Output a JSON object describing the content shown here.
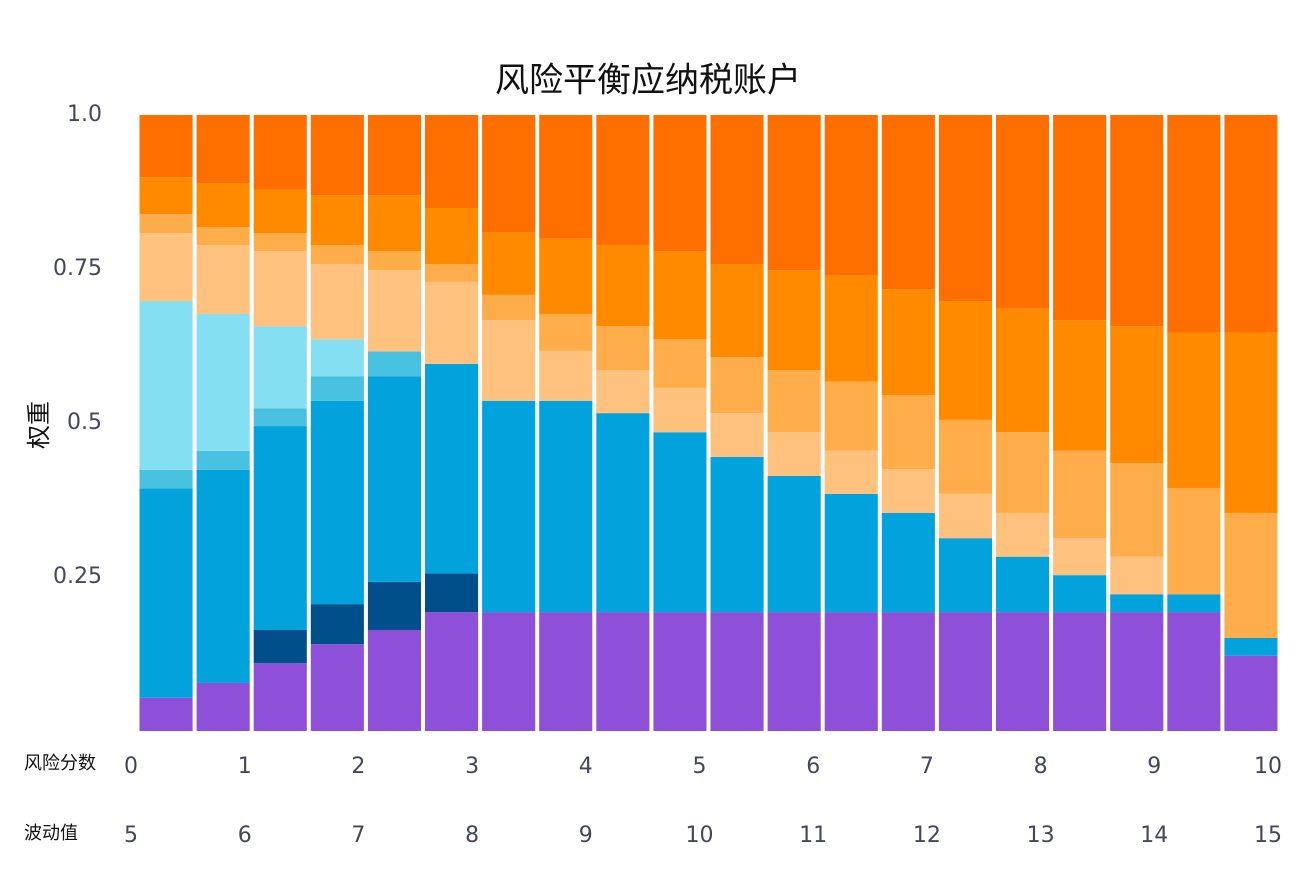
{
  "chart_data": {
    "type": "stacked_bar",
    "title": "风险平衡应纳税账户",
    "y_label": "权重",
    "categories": [
      null,
      null,
      null,
      null,
      null,
      null,
      null,
      null,
      null,
      null,
      null,
      null,
      null,
      null,
      null,
      null,
      null,
      null,
      null,
      null
    ],
    "ylim": [
      0,
      1
    ],
    "yticks": [
      0.25,
      0.5,
      0.75,
      {
        "value": 1,
        "label": "1.0"
      }
    ],
    "x_label": "风险分数",
    "xlim": [
      0,
      10
    ],
    "xticks": [
      0,
      1,
      2,
      3,
      4,
      5,
      6,
      7,
      8,
      9,
      10
    ],
    "x2_label": "波动值",
    "x2lim": [
      5,
      15
    ],
    "x2ticks": [
      5,
      6,
      7,
      8,
      9,
      10,
      11,
      12,
      13,
      14,
      15
    ],
    "series": [
      {
        "color": "#8e4fd9",
        "values": [
          0.054,
          0.078,
          0.11,
          0.141,
          0.164,
          0.193,
          0.193,
          0.193,
          0.193,
          0.193,
          0.193,
          0.193,
          0.193,
          0.193,
          0.193,
          0.193,
          0.193,
          0.193,
          0.193,
          0.122
        ]
      },
      {
        "color": "#004f8a",
        "values": [
          0,
          0,
          0.054,
          0.065,
          0.078,
          0.063,
          0,
          0,
          0,
          0,
          0,
          0,
          0,
          0,
          0,
          0,
          0,
          0,
          0,
          0
        ]
      },
      {
        "color": "#02a3dc",
        "values": [
          0.34,
          0.346,
          0.331,
          0.33,
          0.334,
          0.34,
          0.343,
          0.343,
          0.323,
          0.292,
          0.252,
          0.221,
          0.192,
          0.161,
          0.12,
          0.09,
          0.06,
          0.029,
          0.029,
          0.029
        ]
      },
      {
        "color": "#48c2e0",
        "values": [
          0.03,
          0.031,
          0.029,
          0.04,
          0.04,
          0,
          0,
          0,
          0,
          0,
          0,
          0,
          0,
          0,
          0,
          0,
          0,
          0,
          0,
          0
        ]
      },
      {
        "color": "#84dff2",
        "values": [
          0.274,
          0.222,
          0.133,
          0.06,
          0,
          0,
          0,
          0,
          0,
          0,
          0,
          0,
          0,
          0,
          0,
          0,
          0,
          0,
          0,
          0
        ]
      },
      {
        "color": "#ffc17e",
        "values": [
          0.11,
          0.112,
          0.122,
          0.122,
          0.132,
          0.133,
          0.131,
          0.081,
          0.07,
          0.072,
          0.071,
          0.071,
          0.07,
          0.071,
          0.072,
          0.071,
          0.06,
          0.061,
          0,
          0
        ]
      },
      {
        "color": "#ffad4a",
        "values": [
          0.031,
          0.029,
          0.029,
          0.031,
          0.031,
          0.029,
          0.041,
          0.06,
          0.071,
          0.079,
          0.091,
          0.101,
          0.112,
          0.12,
          0.12,
          0.131,
          0.142,
          0.152,
          0.172,
          0.203
        ]
      },
      {
        "color": "#ff8a00",
        "values": [
          0.06,
          0.071,
          0.071,
          0.081,
          0.091,
          0.091,
          0.101,
          0.122,
          0.132,
          0.143,
          0.151,
          0.162,
          0.172,
          0.172,
          0.193,
          0.201,
          0.212,
          0.222,
          0.253,
          0.293
        ]
      },
      {
        "color": "#ff6f00",
        "values": [
          0.101,
          0.111,
          0.121,
          0.13,
          0.13,
          0.151,
          0.191,
          0.201,
          0.211,
          0.221,
          0.242,
          0.252,
          0.261,
          0.283,
          0.302,
          0.314,
          0.333,
          0.343,
          0.353,
          0.353
        ]
      }
    ]
  }
}
